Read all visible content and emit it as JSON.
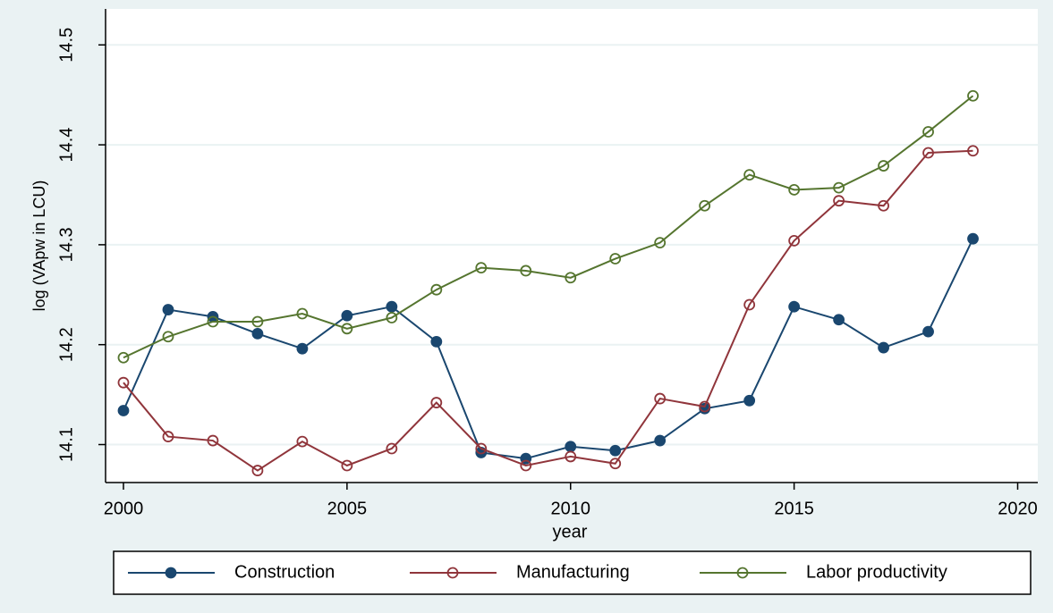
{
  "chart_data": {
    "type": "line",
    "x_label": "year",
    "y_label": "log (VApw in LCU)",
    "x": [
      2000,
      2001,
      2002,
      2003,
      2004,
      2005,
      2006,
      2007,
      2008,
      2009,
      2010,
      2011,
      2012,
      2013,
      2014,
      2015,
      2016,
      2017,
      2018,
      2019
    ],
    "series": [
      {
        "name": "Construction",
        "color": "#1a476f",
        "marker": "filled",
        "values": [
          14.134,
          14.235,
          14.228,
          14.211,
          14.196,
          14.229,
          14.238,
          14.203,
          14.092,
          14.086,
          14.098,
          14.094,
          14.104,
          14.136,
          14.144,
          14.238,
          14.225,
          14.197,
          14.213,
          14.306
        ]
      },
      {
        "name": "Manufacturing",
        "color": "#90353b",
        "marker": "hollow",
        "values": [
          14.162,
          14.108,
          14.104,
          14.074,
          14.103,
          14.079,
          14.096,
          14.142,
          14.096,
          14.079,
          14.088,
          14.081,
          14.146,
          14.138,
          14.24,
          14.304,
          14.344,
          14.339,
          14.392,
          14.394
        ]
      },
      {
        "name": "Labor productivity",
        "color": "#55752f",
        "marker": "hollow",
        "values": [
          14.187,
          14.208,
          14.223,
          14.223,
          14.231,
          14.216,
          14.227,
          14.255,
          14.277,
          14.274,
          14.267,
          14.286,
          14.302,
          14.339,
          14.37,
          14.355,
          14.357,
          14.379,
          14.413,
          14.449
        ]
      }
    ],
    "xlim": [
      1999.6,
      2020.45
    ],
    "ylim": [
      14.062,
      14.536
    ],
    "xticks": [
      2000,
      2005,
      2010,
      2015,
      2020
    ],
    "yticks": [
      14.1,
      14.2,
      14.3,
      14.4,
      14.5
    ],
    "grid": true,
    "legend": "bottom"
  }
}
